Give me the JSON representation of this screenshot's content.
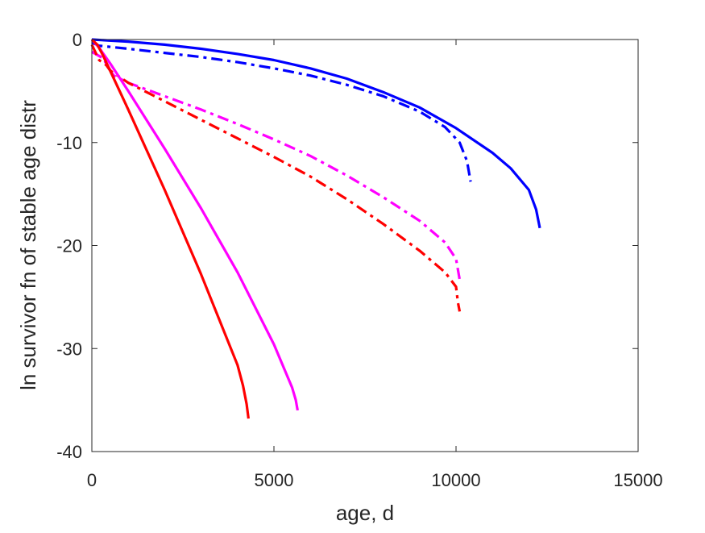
{
  "chart_data": {
    "type": "line",
    "title": "",
    "xlabel": "age, d",
    "ylabel": "ln survivor fn of stable age distr",
    "xlim": [
      0,
      15000
    ],
    "ylim": [
      -40,
      0
    ],
    "xticks": [
      0,
      5000,
      10000,
      15000
    ],
    "xtick_labels": [
      "0",
      "5000",
      "10000",
      "15000"
    ],
    "yticks": [
      0,
      -10,
      -20,
      -30,
      -40
    ],
    "ytick_labels": [
      "0",
      "-10",
      "-20",
      "-30",
      "-40"
    ],
    "grid": false,
    "legend": "none",
    "series": [
      {
        "color": "#0000ff",
        "style": "solid",
        "points": [
          [
            0,
            0
          ],
          [
            1000,
            -0.2
          ],
          [
            2000,
            -0.5
          ],
          [
            3000,
            -0.9
          ],
          [
            4000,
            -1.4
          ],
          [
            5000,
            -2.0
          ],
          [
            6000,
            -2.8
          ],
          [
            7000,
            -3.8
          ],
          [
            8000,
            -5.1
          ],
          [
            9000,
            -6.6
          ],
          [
            10000,
            -8.6
          ],
          [
            11000,
            -11.0
          ],
          [
            11500,
            -12.5
          ],
          [
            12000,
            -14.6
          ],
          [
            12200,
            -16.5
          ],
          [
            12300,
            -18.3
          ]
        ]
      },
      {
        "color": "#0000ff",
        "style": "dashdot",
        "points": [
          [
            0,
            -0.3
          ],
          [
            200,
            -0.6
          ],
          [
            1000,
            -0.9
          ],
          [
            2000,
            -1.3
          ],
          [
            3000,
            -1.7
          ],
          [
            4000,
            -2.2
          ],
          [
            5000,
            -2.8
          ],
          [
            6000,
            -3.5
          ],
          [
            7000,
            -4.4
          ],
          [
            8000,
            -5.5
          ],
          [
            9000,
            -7.0
          ],
          [
            9700,
            -8.5
          ],
          [
            10100,
            -10.0
          ],
          [
            10300,
            -11.8
          ],
          [
            10400,
            -13.8
          ]
        ]
      },
      {
        "color": "#ff00ff",
        "style": "dashdot",
        "points": [
          [
            0,
            -1.2
          ],
          [
            300,
            -1.8
          ],
          [
            600,
            -3.5
          ],
          [
            1000,
            -4.2
          ],
          [
            2000,
            -5.5
          ],
          [
            3000,
            -6.8
          ],
          [
            4000,
            -8.2
          ],
          [
            5000,
            -9.7
          ],
          [
            6000,
            -11.3
          ],
          [
            7000,
            -13.2
          ],
          [
            8000,
            -15.3
          ],
          [
            9000,
            -17.6
          ],
          [
            9700,
            -19.7
          ],
          [
            10000,
            -21.3
          ],
          [
            10100,
            -23.3
          ]
        ]
      },
      {
        "color": "#ff0000",
        "style": "dashdot",
        "points": [
          [
            0,
            -0.5
          ],
          [
            200,
            -2.0
          ],
          [
            400,
            -2.5
          ],
          [
            500,
            -3.0
          ],
          [
            1000,
            -4.2
          ],
          [
            2000,
            -6.0
          ],
          [
            3000,
            -7.8
          ],
          [
            4000,
            -9.6
          ],
          [
            5000,
            -11.4
          ],
          [
            6000,
            -13.3
          ],
          [
            7000,
            -15.5
          ],
          [
            8000,
            -17.9
          ],
          [
            9000,
            -20.5
          ],
          [
            9700,
            -22.6
          ],
          [
            10000,
            -24.0
          ],
          [
            10050,
            -25.5
          ],
          [
            10100,
            -26.4
          ]
        ]
      },
      {
        "color": "#ff00ff",
        "style": "solid",
        "points": [
          [
            0,
            0
          ],
          [
            200,
            -0.8
          ],
          [
            500,
            -2.3
          ],
          [
            1000,
            -5.0
          ],
          [
            2000,
            -10.6
          ],
          [
            3000,
            -16.4
          ],
          [
            4000,
            -22.6
          ],
          [
            5000,
            -29.6
          ],
          [
            5500,
            -33.8
          ],
          [
            5600,
            -35.0
          ],
          [
            5650,
            -36.0
          ]
        ]
      },
      {
        "color": "#ff0000",
        "style": "solid",
        "points": [
          [
            0,
            0
          ],
          [
            150,
            -0.5
          ],
          [
            300,
            -1.5
          ],
          [
            1000,
            -6.8
          ],
          [
            2000,
            -14.6
          ],
          [
            3000,
            -22.8
          ],
          [
            4000,
            -31.6
          ],
          [
            4150,
            -33.6
          ],
          [
            4250,
            -35.4
          ],
          [
            4300,
            -36.8
          ]
        ]
      }
    ]
  }
}
